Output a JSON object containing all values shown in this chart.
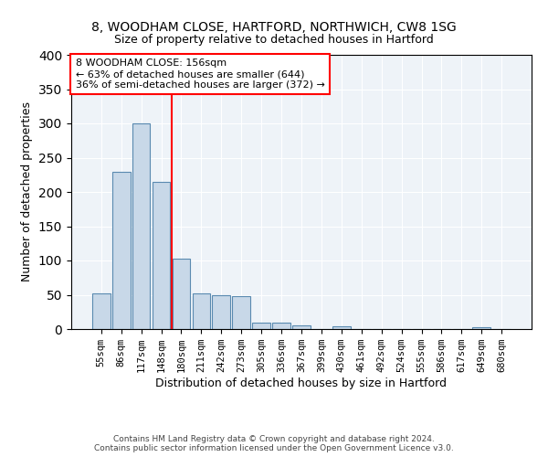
{
  "title1": "8, WOODHAM CLOSE, HARTFORD, NORTHWICH, CW8 1SG",
  "title2": "Size of property relative to detached houses in Hartford",
  "xlabel": "Distribution of detached houses by size in Hartford",
  "ylabel": "Number of detached properties",
  "categories": [
    "55sqm",
    "86sqm",
    "117sqm",
    "148sqm",
    "180sqm",
    "211sqm",
    "242sqm",
    "273sqm",
    "305sqm",
    "336sqm",
    "367sqm",
    "399sqm",
    "430sqm",
    "461sqm",
    "492sqm",
    "524sqm",
    "555sqm",
    "586sqm",
    "617sqm",
    "649sqm",
    "680sqm"
  ],
  "values": [
    52,
    230,
    300,
    215,
    103,
    52,
    50,
    48,
    9,
    9,
    6,
    0,
    4,
    0,
    0,
    0,
    0,
    0,
    0,
    3,
    0
  ],
  "bar_color": "#c8d8e8",
  "bar_edge_color": "#5a8ab0",
  "vline_x": 3.5,
  "vline_color": "red",
  "annotation_text": "8 WOODHAM CLOSE: 156sqm\n← 63% of detached houses are smaller (644)\n36% of semi-detached houses are larger (372) →",
  "annotation_box_color": "white",
  "annotation_box_edge": "red",
  "background_color": "#eef3f8",
  "footer": "Contains HM Land Registry data © Crown copyright and database right 2024.\nContains public sector information licensed under the Open Government Licence v3.0.",
  "ylim": [
    0,
    400
  ],
  "yticks": [
    0,
    50,
    100,
    150,
    200,
    250,
    300,
    350,
    400
  ]
}
